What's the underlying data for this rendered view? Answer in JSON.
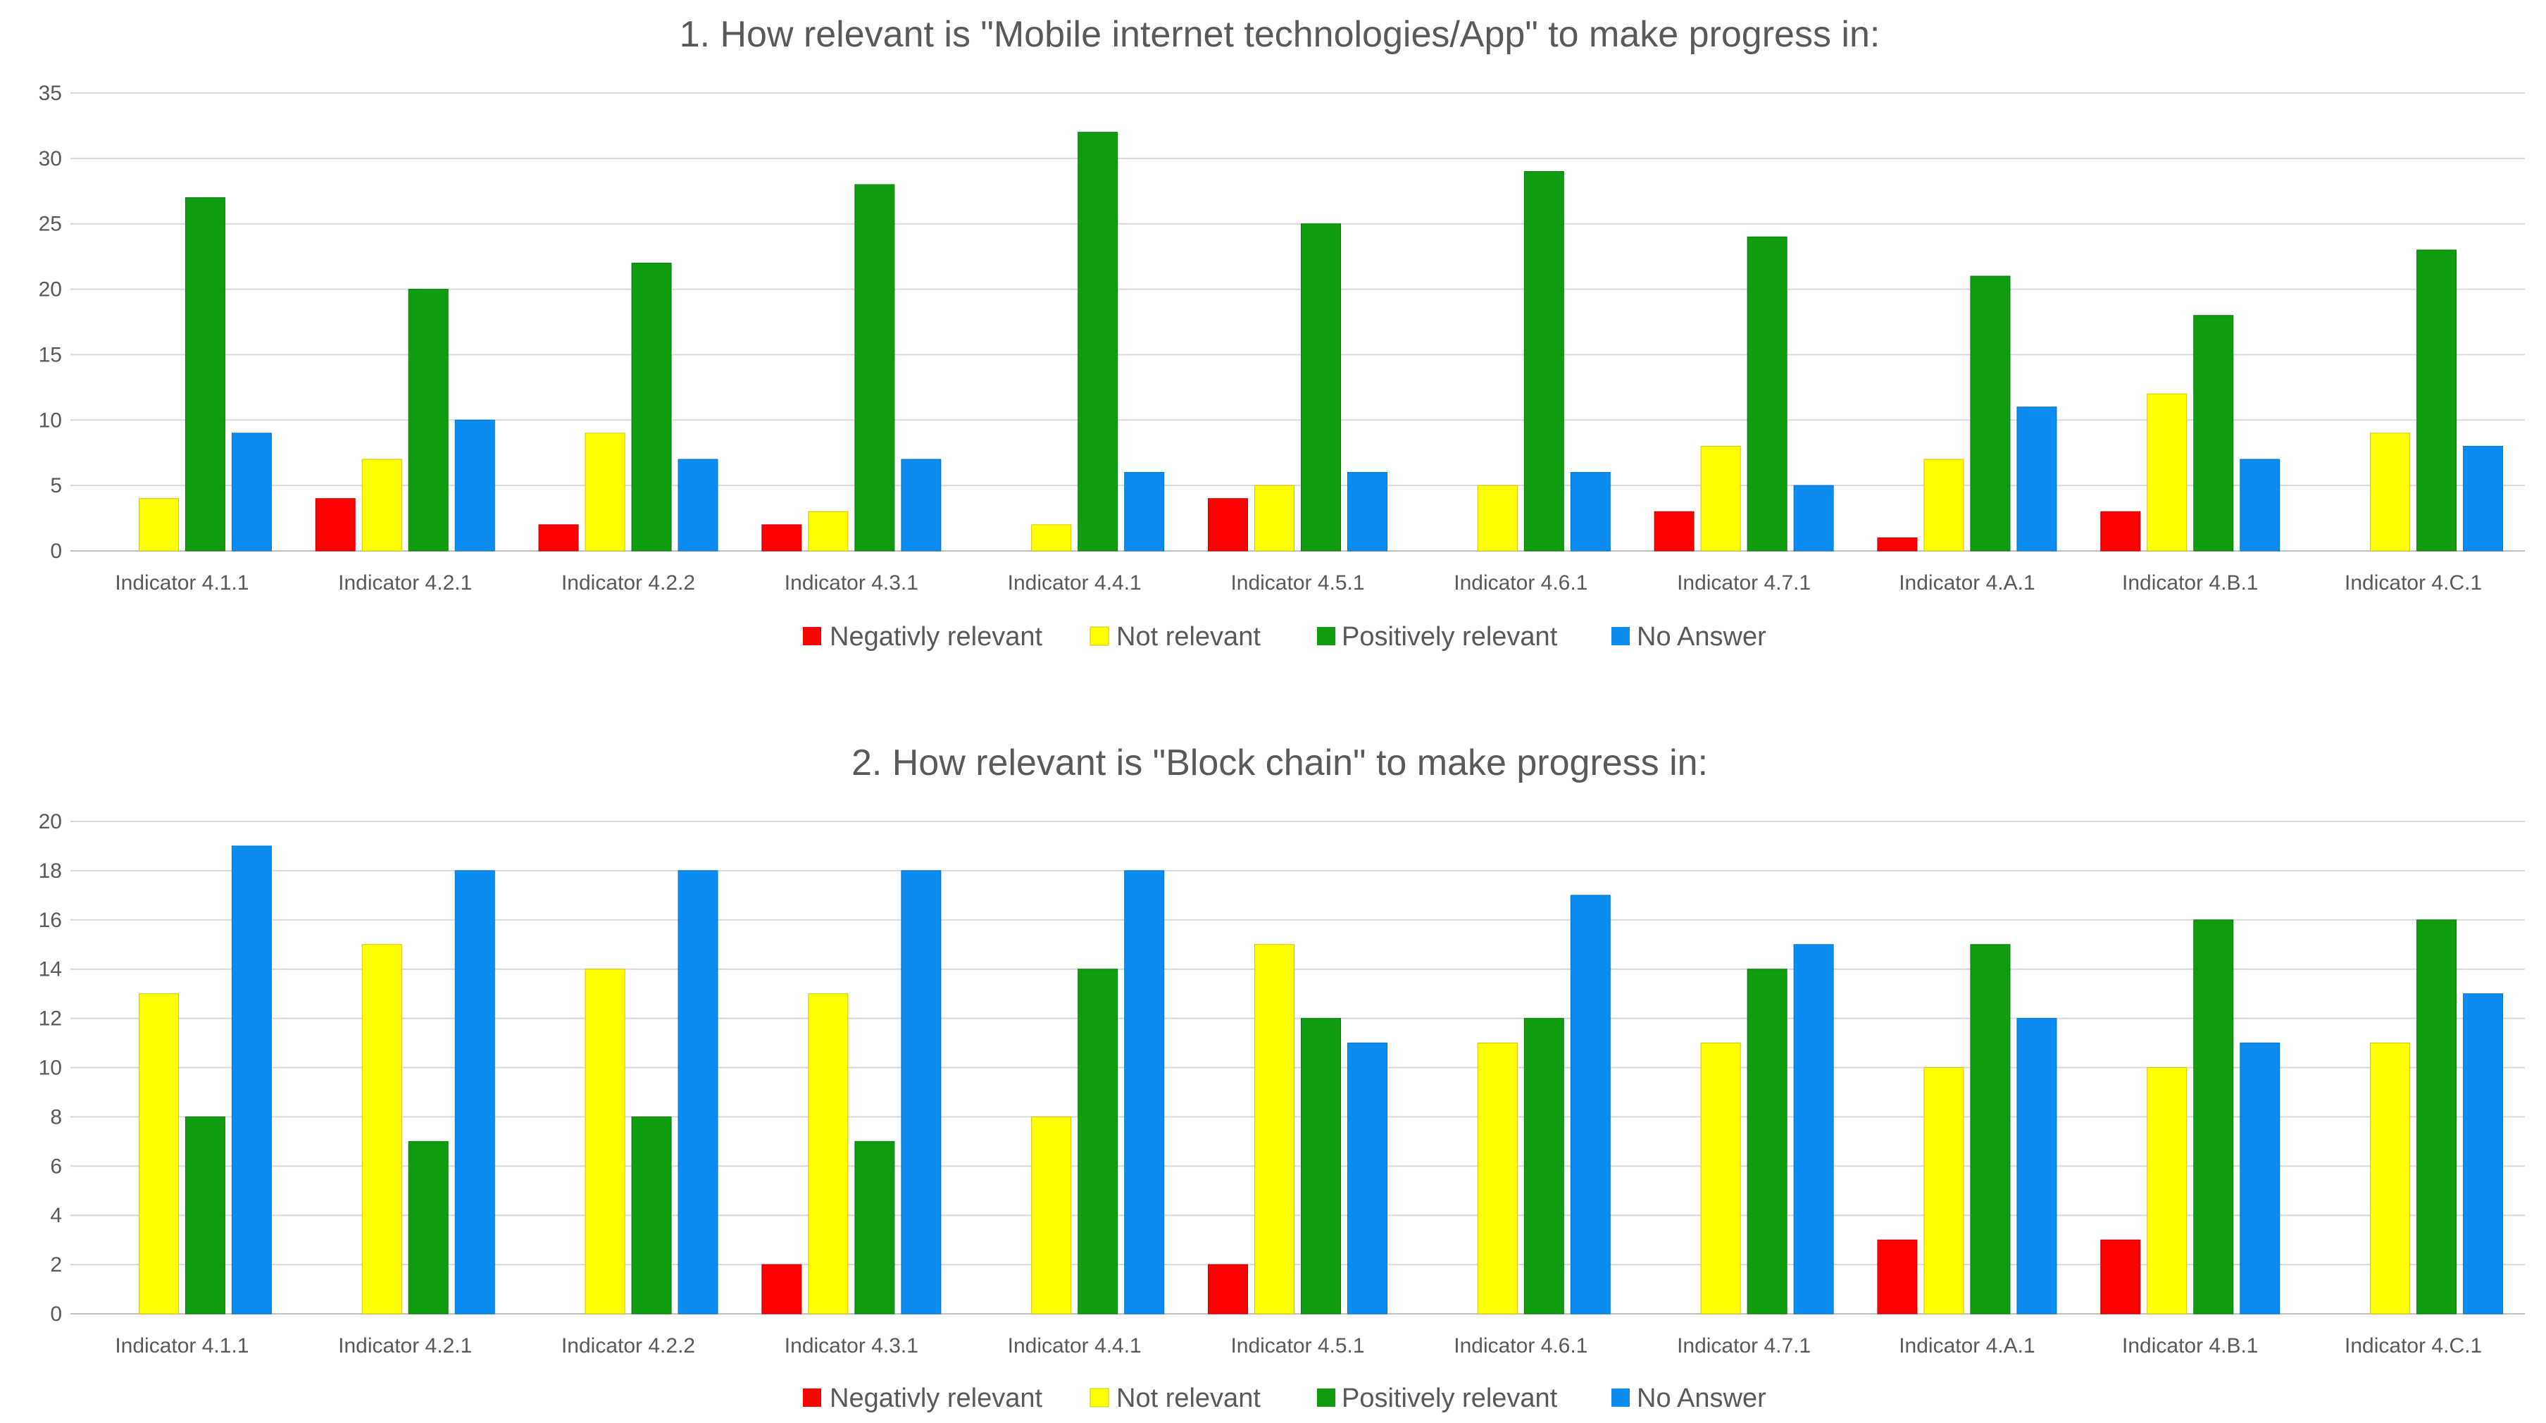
{
  "chart_data": [
    {
      "type": "bar",
      "title": "1. How relevant is \"Mobile internet technologies/App\"  to make progress in:",
      "xlabel": "",
      "ylabel": "",
      "ylim": [
        0,
        35
      ],
      "yticks": [
        "0",
        "5",
        "10",
        "15",
        "20",
        "25",
        "30",
        "35"
      ],
      "grid": true,
      "legend_position": "bottom",
      "categories": [
        "Indicator 4.1.1",
        "Indicator 4.2.1",
        "Indicator 4.2.2",
        "Indicator 4.3.1",
        "Indicator 4.4.1",
        "Indicator 4.5.1",
        "Indicator 4.6.1",
        "Indicator 4.7.1",
        "Indicator 4.A.1",
        "Indicator 4.B.1",
        "Indicator 4.C.1"
      ],
      "series": [
        {
          "name": "Negativly relevant",
          "color": "#ff0000",
          "values": [
            0,
            4,
            2,
            2,
            0,
            4,
            0,
            3,
            1,
            3,
            0
          ]
        },
        {
          "name": "Not relevant",
          "color": "#ffff00",
          "values": [
            4,
            7,
            9,
            3,
            2,
            5,
            5,
            8,
            7,
            12,
            9
          ]
        },
        {
          "name": "Positively relevant",
          "color": "#109c0f",
          "values": [
            27,
            20,
            22,
            28,
            32,
            25,
            29,
            24,
            21,
            18,
            23
          ]
        },
        {
          "name": "No Answer",
          "color": "#0a8cf0",
          "values": [
            9,
            10,
            7,
            7,
            6,
            6,
            6,
            5,
            11,
            7,
            8
          ]
        }
      ]
    },
    {
      "type": "bar",
      "title": "2. How relevant is \"Block chain\" to make progress in:",
      "xlabel": "",
      "ylabel": "",
      "ylim": [
        0,
        20
      ],
      "yticks": [
        "0",
        "2",
        "4",
        "6",
        "8",
        "10",
        "12",
        "14",
        "16",
        "18",
        "20"
      ],
      "grid": true,
      "legend_position": "bottom",
      "categories": [
        "Indicator 4.1.1",
        "Indicator 4.2.1",
        "Indicator 4.2.2",
        "Indicator 4.3.1",
        "Indicator 4.4.1",
        "Indicator 4.5.1",
        "Indicator 4.6.1",
        "Indicator 4.7.1",
        "Indicator 4.A.1",
        "Indicator 4.B.1",
        "Indicator 4.C.1"
      ],
      "series": [
        {
          "name": "Negativly relevant",
          "color": "#ff0000",
          "values": [
            0,
            0,
            0,
            2,
            0,
            2,
            0,
            0,
            3,
            3,
            0
          ]
        },
        {
          "name": "Not relevant",
          "color": "#ffff00",
          "values": [
            13,
            15,
            14,
            13,
            8,
            15,
            11,
            11,
            10,
            10,
            11
          ]
        },
        {
          "name": "Positively relevant",
          "color": "#109c0f",
          "values": [
            8,
            7,
            8,
            7,
            14,
            12,
            12,
            14,
            15,
            16,
            16
          ]
        },
        {
          "name": "No Answer",
          "color": "#0a8cf0",
          "values": [
            19,
            18,
            18,
            18,
            18,
            11,
            17,
            15,
            12,
            11,
            13
          ]
        }
      ]
    }
  ]
}
